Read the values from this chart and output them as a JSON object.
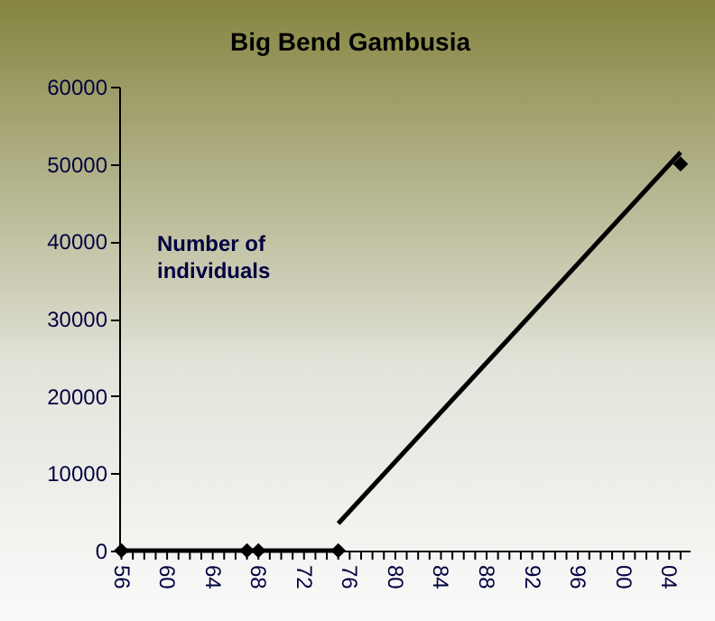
{
  "chart_data": {
    "type": "line",
    "title": "Big Bend Gambusia",
    "annotations": [
      "Number of individuals"
    ],
    "series": [
      {
        "type": "line",
        "color": "#000000",
        "marker": "diamond",
        "x": [
          1956,
          1967,
          1968,
          1975
        ],
        "values": [
          0,
          0,
          0,
          0
        ]
      },
      {
        "type": "scatter",
        "color": "#000000",
        "marker": "diamond",
        "x": [
          2005
        ],
        "values": [
          50000
        ]
      },
      {
        "type": "line",
        "color": "#000000",
        "marker": "none",
        "x": [
          1975,
          2005
        ],
        "values": [
          3500,
          51500
        ]
      }
    ],
    "xlim": [
      1955.8,
      2005.8
    ],
    "ylim": [
      0,
      60000
    ],
    "yticks": [
      0,
      10000,
      20000,
      30000,
      40000,
      50000,
      60000
    ],
    "xticks": [
      {
        "value": 1956,
        "label": "56"
      },
      {
        "value": 1957,
        "label": null
      },
      {
        "value": 1958,
        "label": null
      },
      {
        "value": 1959,
        "label": null
      },
      {
        "value": 1960,
        "label": "60"
      },
      {
        "value": 1961,
        "label": null
      },
      {
        "value": 1962,
        "label": null
      },
      {
        "value": 1963,
        "label": null
      },
      {
        "value": 1964,
        "label": "64"
      },
      {
        "value": 1965,
        "label": null
      },
      {
        "value": 1966,
        "label": null
      },
      {
        "value": 1967,
        "label": null
      },
      {
        "value": 1968,
        "label": "68"
      },
      {
        "value": 1969,
        "label": null
      },
      {
        "value": 1970,
        "label": null
      },
      {
        "value": 1971,
        "label": null
      },
      {
        "value": 1972,
        "label": "72"
      },
      {
        "value": 1973,
        "label": null
      },
      {
        "value": 1974,
        "label": null
      },
      {
        "value": 1975,
        "label": null
      },
      {
        "value": 1976,
        "label": "76"
      },
      {
        "value": 1977,
        "label": null
      },
      {
        "value": 1978,
        "label": null
      },
      {
        "value": 1979,
        "label": null
      },
      {
        "value": 1980,
        "label": "80"
      },
      {
        "value": 1981,
        "label": null
      },
      {
        "value": 1982,
        "label": null
      },
      {
        "value": 1983,
        "label": null
      },
      {
        "value": 1984,
        "label": "84"
      },
      {
        "value": 1985,
        "label": null
      },
      {
        "value": 1986,
        "label": null
      },
      {
        "value": 1987,
        "label": null
      },
      {
        "value": 1988,
        "label": "88"
      },
      {
        "value": 1989,
        "label": null
      },
      {
        "value": 1990,
        "label": null
      },
      {
        "value": 1991,
        "label": null
      },
      {
        "value": 1992,
        "label": "92"
      },
      {
        "value": 1993,
        "label": null
      },
      {
        "value": 1994,
        "label": null
      },
      {
        "value": 1995,
        "label": null
      },
      {
        "value": 1996,
        "label": "96"
      },
      {
        "value": 1997,
        "label": null
      },
      {
        "value": 1998,
        "label": null
      },
      {
        "value": 1999,
        "label": null
      },
      {
        "value": 2000,
        "label": "00"
      },
      {
        "value": 2001,
        "label": null
      },
      {
        "value": 2002,
        "label": null
      },
      {
        "value": 2003,
        "label": null
      },
      {
        "value": 2004,
        "label": "04"
      },
      {
        "value": 2005,
        "label": null
      }
    ],
    "grid": false
  }
}
